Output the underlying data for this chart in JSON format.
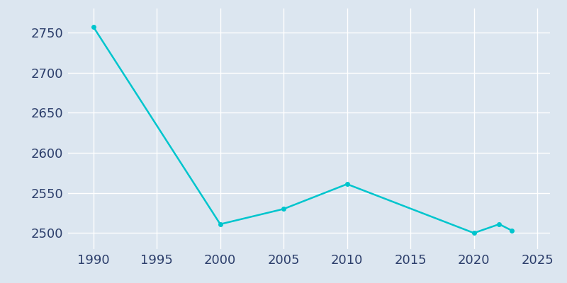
{
  "years": [
    1990,
    2000,
    2005,
    2010,
    2020,
    2022,
    2023
  ],
  "population": [
    2757,
    2511,
    2530,
    2561,
    2500,
    2511,
    2503
  ],
  "line_color": "#00C5CD",
  "bg_color": "#dce6f0",
  "plot_bg_color": "#dce6f0",
  "figure_bg_color": "#dce6f0",
  "grid_color": "#ffffff",
  "tick_color": "#2c3e6b",
  "xlim": [
    1988,
    2026
  ],
  "ylim": [
    2480,
    2780
  ],
  "yticks": [
    2500,
    2550,
    2600,
    2650,
    2700,
    2750
  ],
  "xticks": [
    1990,
    1995,
    2000,
    2005,
    2010,
    2015,
    2020,
    2025
  ],
  "line_width": 1.8,
  "marker": "o",
  "marker_size": 4,
  "tick_label_size": 13
}
